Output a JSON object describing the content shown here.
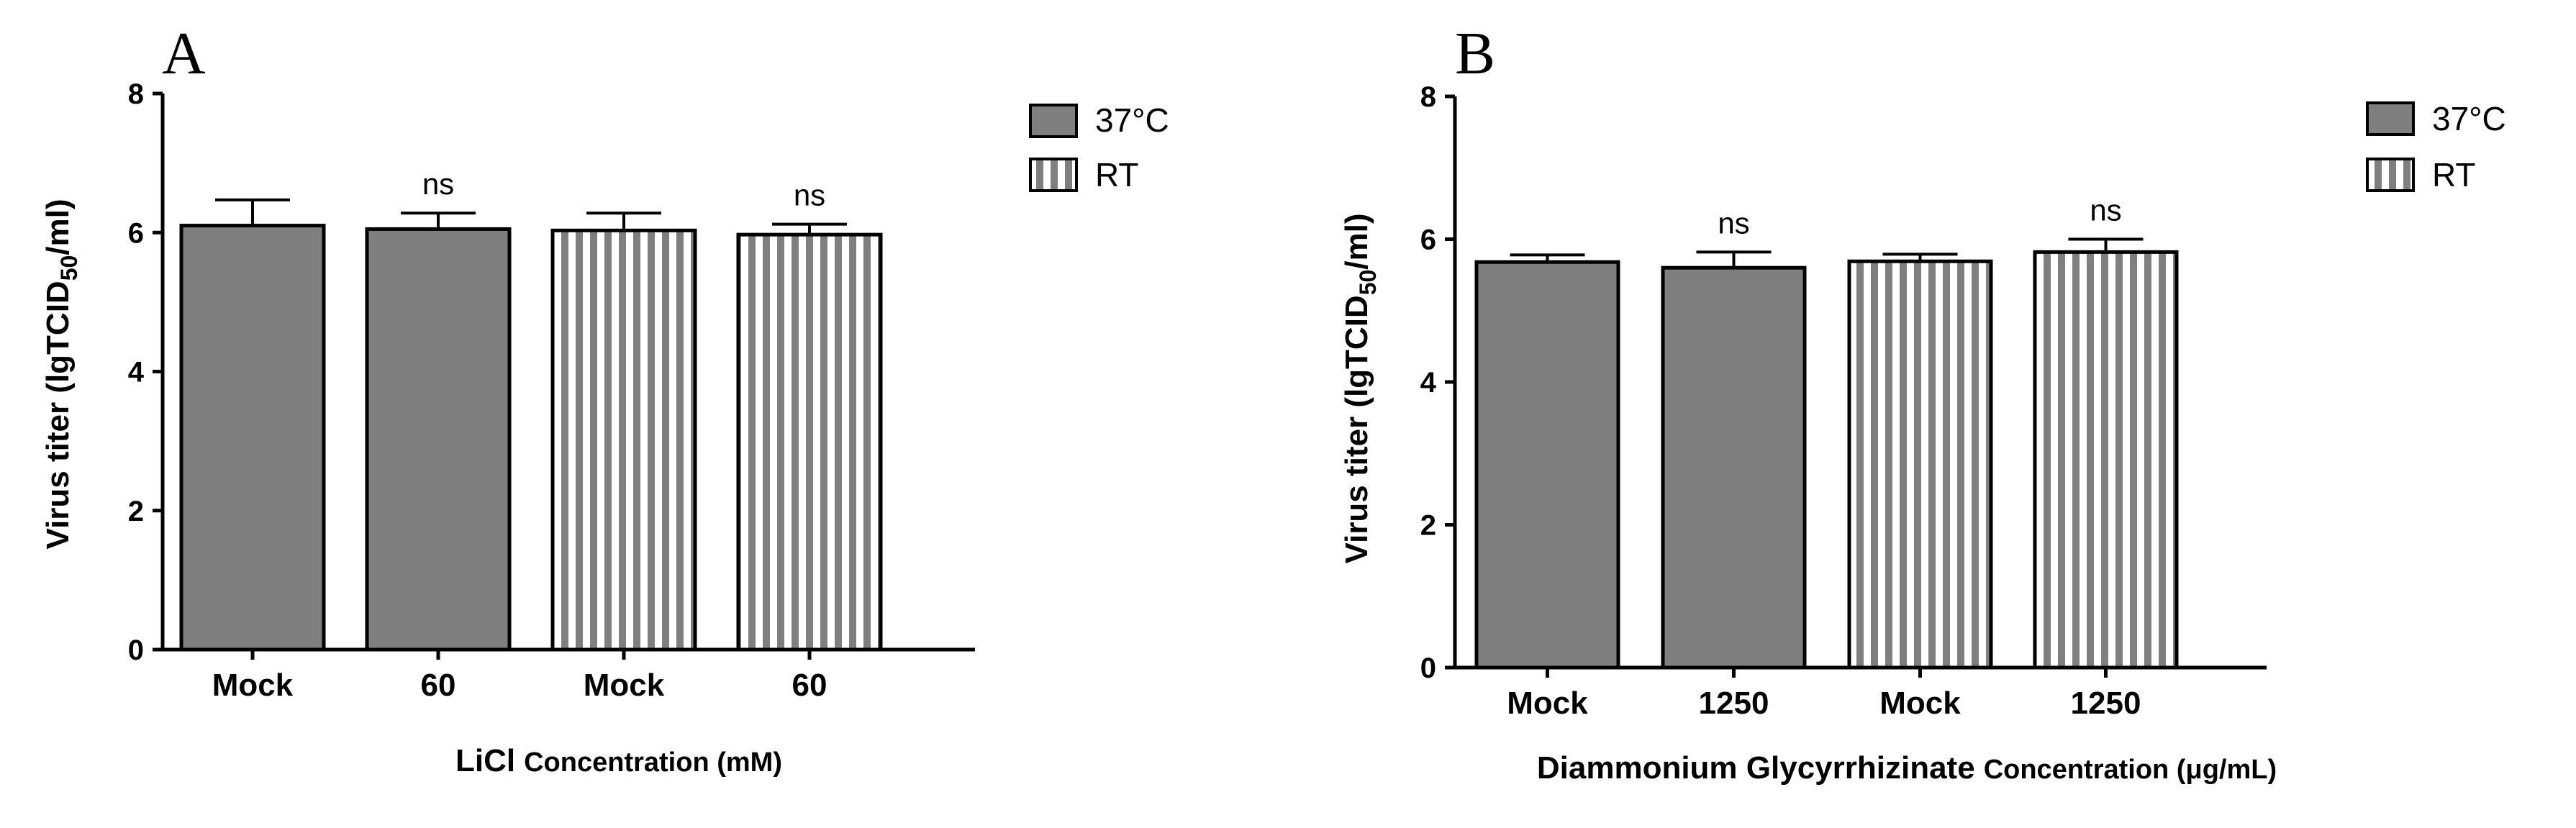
{
  "chart_data": [
    {
      "panel": "A",
      "type": "bar",
      "categories": [
        "Mock",
        "60",
        "Mock",
        "60"
      ],
      "values": [
        6.1,
        6.05,
        6.03,
        5.97
      ],
      "errors": [
        0.37,
        0.23,
        0.25,
        0.15
      ],
      "groups": [
        "37°C",
        "37°C",
        "RT",
        "RT"
      ],
      "significance": [
        "",
        "ns",
        "",
        "ns"
      ],
      "legend": [
        "37°C",
        "RT"
      ],
      "xlabel_main": "LiCl",
      "xlabel_rest": "Concentration (mM)",
      "ylabel_main": "Virus titer (lgTCID",
      "ylabel_sub": "50",
      "ylabel_end": "/ml)",
      "ylim": [
        0,
        8
      ],
      "yticks": [
        "0",
        "2",
        "4",
        "6",
        "8"
      ]
    },
    {
      "panel": "B",
      "type": "bar",
      "categories": [
        "Mock",
        "1250",
        "Mock",
        "1250"
      ],
      "values": [
        5.68,
        5.6,
        5.69,
        5.82
      ],
      "errors": [
        0.1,
        0.22,
        0.1,
        0.18
      ],
      "groups": [
        "37°C",
        "37°C",
        "RT",
        "RT"
      ],
      "significance": [
        "",
        "ns",
        "",
        "ns"
      ],
      "legend": [
        "37°C",
        "RT"
      ],
      "xlabel_main": "Diammonium Glycyrrhizinate",
      "xlabel_rest": "Concentration (μg/mL)",
      "ylabel_main": "Virus titer (lgTCID",
      "ylabel_sub": "50",
      "ylabel_end": "/ml)",
      "ylim": [
        0,
        8
      ],
      "yticks": [
        "0",
        "2",
        "4",
        "6",
        "8"
      ]
    }
  ],
  "colors": {
    "bar_fill": "#7f7f7f",
    "stripe": "#ffffff",
    "axis": "#000000"
  }
}
